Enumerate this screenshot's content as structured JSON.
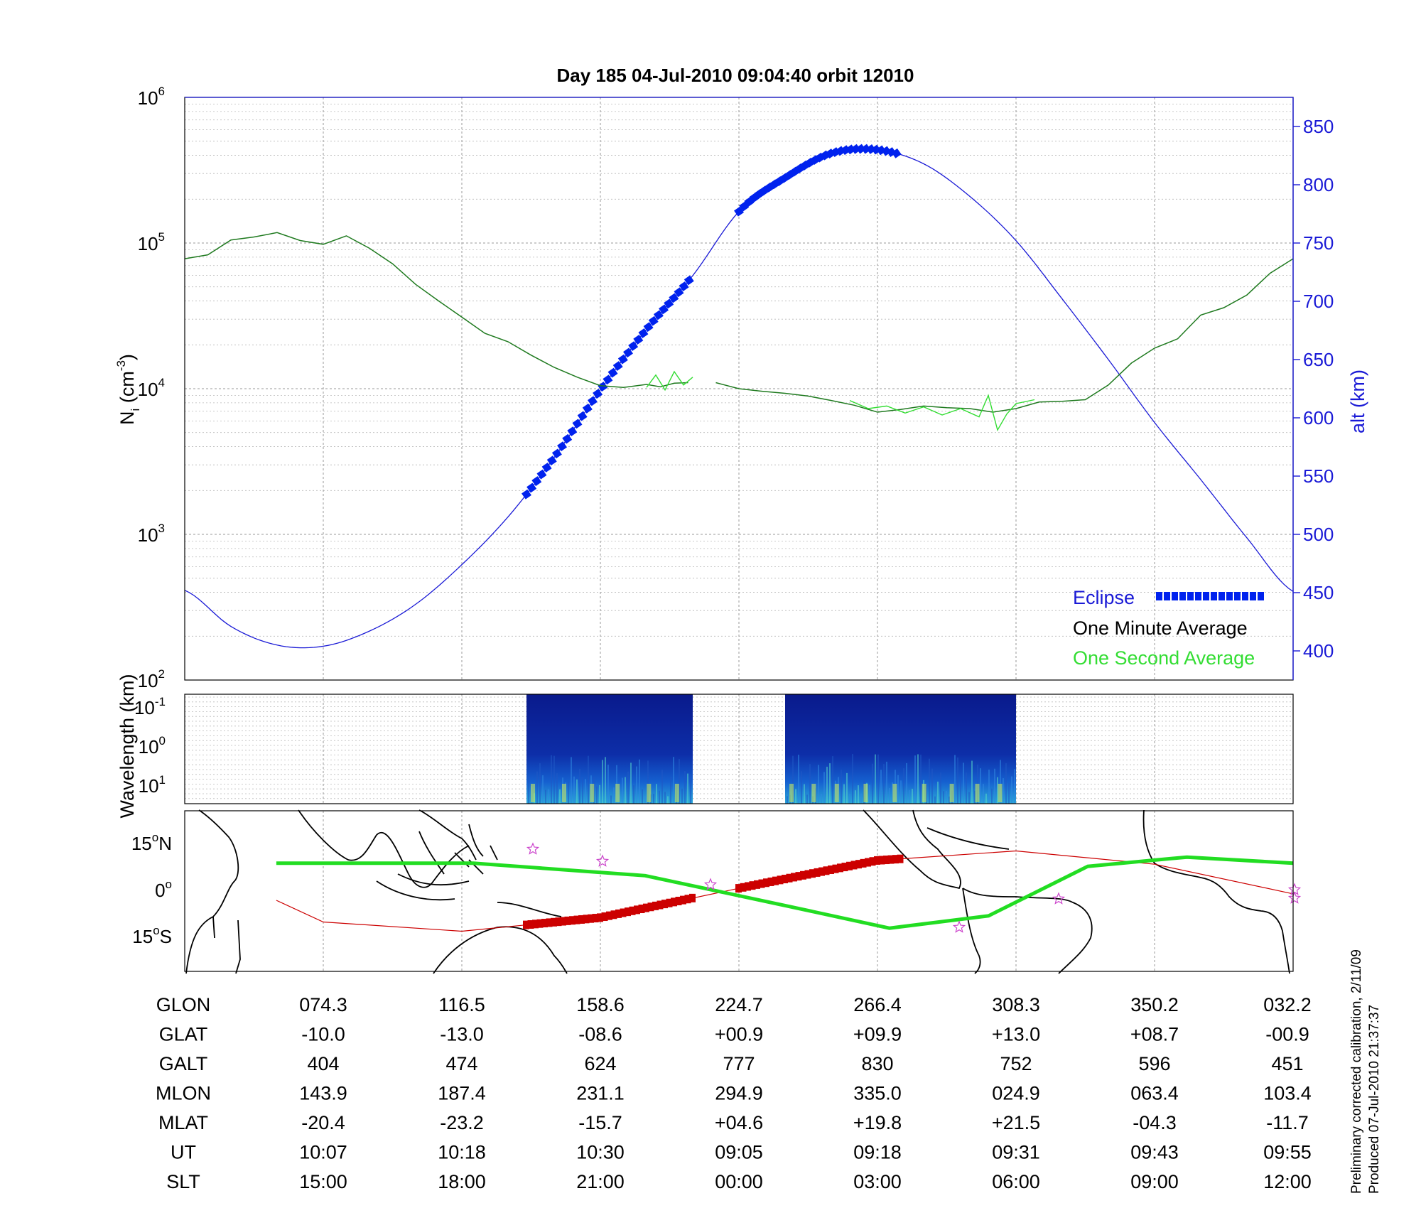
{
  "title": "Day 185  04-Jul-2010 09:04:40   orbit 12010",
  "panel_density": {
    "ylabel_main": "N",
    "ylabel_sub": "i",
    "ylabel_unit_pre": " (cm",
    "ylabel_unit_sup": "-3",
    "ylabel_unit_post": ")",
    "y_ticks": [
      {
        "base": "10",
        "exp": "6"
      },
      {
        "base": "10",
        "exp": "5"
      },
      {
        "base": "10",
        "exp": "4"
      },
      {
        "base": "10",
        "exp": "3"
      },
      {
        "base": "10",
        "exp": "2"
      }
    ],
    "right_ylabel": "alt (km)",
    "right_ticks": [
      "850",
      "800",
      "750",
      "700",
      "650",
      "600",
      "550",
      "500",
      "450",
      "400"
    ]
  },
  "legend": {
    "eclipse": "Eclipse",
    "minute": "One Minute Average",
    "second": "One Second Average"
  },
  "panel_wavelength": {
    "ylabel": "Wavelength (km)",
    "ticks": [
      {
        "base": "10",
        "exp": "-1"
      },
      {
        "base": "10",
        "exp": "0"
      },
      {
        "base": "10",
        "exp": "1"
      }
    ]
  },
  "panel_map": {
    "ticks": [
      {
        "num": "15",
        "deg": "o",
        "hem": "N"
      },
      {
        "num": "0",
        "deg": "o",
        "hem": ""
      },
      {
        "num": "15",
        "deg": "o",
        "hem": "S"
      }
    ]
  },
  "table": {
    "rows": [
      {
        "label": "GLON",
        "values": [
          "074.3",
          "116.5",
          "158.6",
          "224.7",
          "266.4",
          "308.3",
          "350.2",
          "032.2"
        ]
      },
      {
        "label": "GLAT",
        "values": [
          "-10.0",
          "-13.0",
          "-08.6",
          "+00.9",
          "+09.9",
          "+13.0",
          "+08.7",
          "-00.9"
        ]
      },
      {
        "label": "GALT",
        "values": [
          "404",
          "474",
          "624",
          "777",
          "830",
          "752",
          "596",
          "451"
        ]
      },
      {
        "label": "MLON",
        "values": [
          "143.9",
          "187.4",
          "231.1",
          "294.9",
          "335.0",
          "024.9",
          "063.4",
          "103.4"
        ]
      },
      {
        "label": "MLAT",
        "values": [
          "-20.4",
          "-23.2",
          "-15.7",
          "+04.6",
          "+19.8",
          "+21.5",
          "-04.3",
          "-11.7"
        ]
      },
      {
        "label": "UT",
        "values": [
          "10:07",
          "10:18",
          "10:30",
          "09:05",
          "09:18",
          "09:31",
          "09:43",
          "09:55"
        ]
      },
      {
        "label": "SLT",
        "values": [
          "15:00",
          "18:00",
          "21:00",
          "00:00",
          "03:00",
          "06:00",
          "09:00",
          "12:00"
        ]
      }
    ]
  },
  "footer": {
    "line1": "Preliminary corrected calibration, 2/11/09",
    "line2": "Produced 07-Jul-2010 21:37:37"
  },
  "colors": {
    "altitude": "#1a1ad6",
    "eclipse": "#0022ee",
    "minute_avg": "#1f7a1f",
    "second_avg": "#33dd33",
    "ground_track": "#cc0000",
    "mag_equator": "#22dd22",
    "stars": "#cc44cc"
  },
  "chart_data": [
    {
      "type": "line",
      "title": "Day 185  04-Jul-2010 09:04:40   orbit 12010",
      "x_ticks_slt": [
        "15:00",
        "18:00",
        "21:00",
        "00:00",
        "03:00",
        "06:00",
        "09:00",
        "12:00"
      ],
      "xlim_slt_hours": [
        12,
        36
      ],
      "y_log_scale": true,
      "ylim": [
        100,
        1000000
      ],
      "ylabel": "Ni (cm-3)",
      "y2label": "alt (km)",
      "y2lim": [
        375,
        875
      ],
      "grid": true,
      "legend_position": "bottom-right",
      "series": [
        {
          "name": "One Minute Average",
          "axis": "left",
          "x": [
            12.0,
            12.5,
            13.0,
            13.5,
            14.0,
            14.5,
            15.0,
            15.5,
            16.0,
            16.5,
            17.0,
            17.5,
            18.0,
            18.5,
            19.0,
            19.5,
            20.0,
            20.5,
            21.0,
            21.5,
            22.0,
            22.3,
            22.6,
            22.9,
            23.0,
            23.5,
            24.0,
            24.5,
            25.0,
            25.5,
            26.0,
            26.5,
            27.0,
            27.5,
            28.0,
            28.5,
            29.0,
            29.5,
            30.0,
            30.5,
            31.0,
            31.5,
            32.0,
            32.5,
            33.0,
            33.5,
            34.0,
            34.5,
            35.0,
            35.5,
            36.0
          ],
          "y": [
            78000,
            83000,
            105000,
            110000,
            118000,
            104000,
            98000,
            112000,
            92000,
            72000,
            52000,
            40000,
            31000,
            24000,
            21000,
            17000,
            14000,
            12000,
            10500,
            10200,
            10700,
            10300,
            10900,
            11000,
            null,
            11000,
            10000,
            9600,
            9300,
            8900,
            8300,
            7700,
            6900,
            7200,
            7600,
            7400,
            7300,
            6900,
            7300,
            8100,
            8200,
            8400,
            10600,
            15000,
            19000,
            22000,
            32000,
            36000,
            44000,
            62000,
            78000
          ]
        },
        {
          "name": "One Second Average",
          "axis": "left",
          "x": [
            22.0,
            22.2,
            22.4,
            22.6,
            22.8,
            23.0,
            26.4,
            26.8,
            27.2,
            27.6,
            28.0,
            28.4,
            28.8,
            29.2,
            29.4,
            29.6,
            29.8,
            30.0,
            30.4
          ],
          "y": [
            10200,
            12400,
            9800,
            13100,
            10600,
            12000,
            8300,
            7300,
            7600,
            6800,
            7500,
            6600,
            7300,
            6400,
            9000,
            5200,
            6700,
            7900,
            8400
          ]
        },
        {
          "name": "Altitude",
          "axis": "right",
          "x": [
            12,
            13,
            14,
            15,
            16,
            17,
            18,
            19,
            20,
            21,
            22,
            23,
            24,
            25,
            26,
            27,
            28,
            29,
            30,
            31,
            32,
            33,
            34,
            35,
            36
          ],
          "y": [
            452,
            421,
            405,
            404,
            417,
            440,
            474,
            515,
            566,
            624,
            676,
            722,
            777,
            806,
            827,
            830,
            818,
            790,
            752,
            702,
            650,
            596,
            547,
            497,
            451
          ]
        },
        {
          "name": "Eclipse",
          "axis": "right",
          "intervals_slt": [
            [
              19.4,
              23.0
            ],
            [
              24.0,
              27.5
            ]
          ]
        }
      ]
    },
    {
      "type": "heatmap",
      "ylabel": "Wavelength (km)",
      "y_ticks": [
        "10-1",
        "100",
        "101"
      ],
      "data_intervals_slt": [
        [
          19.4,
          23.0
        ],
        [
          25.0,
          30.0
        ]
      ]
    },
    {
      "type": "line",
      "y_ticks": [
        "15N",
        "0",
        "15S"
      ],
      "series": [
        {
          "name": "Ground track",
          "x_glon": [
            60,
            74.3,
            116.5,
            158.6,
            224.7,
            266.4,
            308.3,
            350.2,
            32.2
          ],
          "y_glat": [
            -3,
            -10.0,
            -13.0,
            -8.6,
            0.9,
            9.9,
            13.0,
            8.7,
            -0.9
          ]
        },
        {
          "name": "Magnetic equator",
          "x_glon": [
            60,
            120,
            180,
            240,
            270,
            300,
            330,
            360,
            420
          ],
          "y_glat": [
            9,
            9,
            5,
            -5,
            -12,
            -8,
            8,
            11,
            9
          ]
        }
      ]
    }
  ]
}
